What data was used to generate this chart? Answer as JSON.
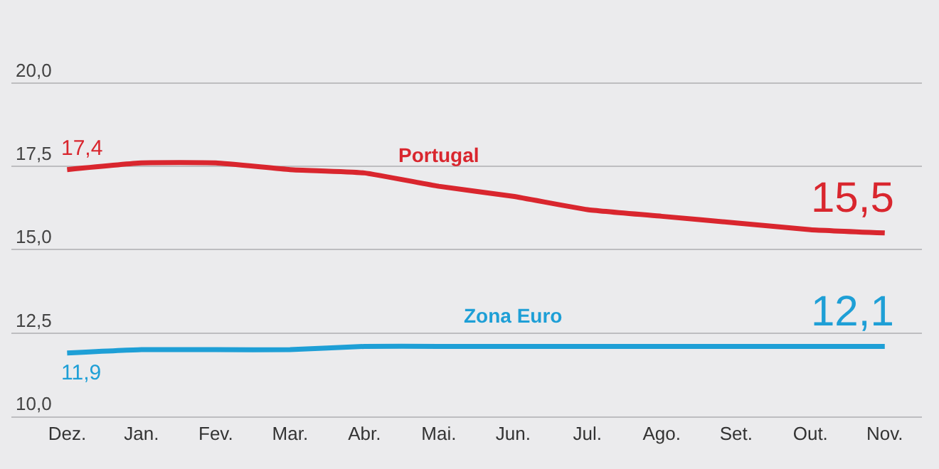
{
  "chart_data": {
    "type": "line",
    "categories": [
      "Dez.",
      "Jan.",
      "Fev.",
      "Mar.",
      "Abr.",
      "Mai.",
      "Jun.",
      "Jul.",
      "Ago.",
      "Set.",
      "Out.",
      "Nov."
    ],
    "series": [
      {
        "name": "Portugal",
        "color": "#d9262e",
        "values": [
          17.4,
          17.6,
          17.6,
          17.4,
          17.3,
          16.9,
          16.6,
          16.2,
          16.0,
          15.8,
          15.6,
          15.5
        ],
        "value_labels": [
          "17,4",
          null,
          null,
          null,
          null,
          null,
          null,
          null,
          null,
          null,
          null,
          "15,5"
        ]
      },
      {
        "name": "Zona Euro",
        "color": "#1e9fd6",
        "values": [
          11.9,
          12.0,
          12.0,
          12.0,
          12.1,
          12.1,
          12.1,
          12.1,
          12.1,
          12.1,
          12.1,
          12.1
        ],
        "value_labels": [
          "11,9",
          null,
          null,
          null,
          null,
          null,
          null,
          null,
          null,
          null,
          null,
          "12,1"
        ]
      }
    ],
    "ylim": [
      10,
      22.4
    ],
    "yticks": [
      {
        "value": 10,
        "label": "10,0"
      },
      {
        "value": 12.5,
        "label": "12,5"
      },
      {
        "value": 15,
        "label": "15,0"
      },
      {
        "value": 17.5,
        "label": "17,5"
      },
      {
        "value": 20,
        "label": "20,0"
      }
    ],
    "grid": "y",
    "legend": false,
    "marker": "none",
    "line_style": "solid"
  }
}
